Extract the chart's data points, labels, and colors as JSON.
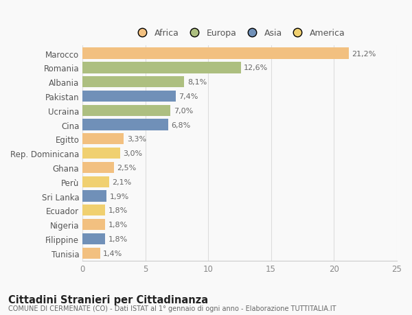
{
  "categories": [
    "Marocco",
    "Romania",
    "Albania",
    "Pakistan",
    "Ucraina",
    "Cina",
    "Egitto",
    "Rep. Dominicana",
    "Ghana",
    "Perù",
    "Sri Lanka",
    "Ecuador",
    "Nigeria",
    "Filippine",
    "Tunisia"
  ],
  "values": [
    21.2,
    12.6,
    8.1,
    7.4,
    7.0,
    6.8,
    3.3,
    3.0,
    2.5,
    2.1,
    1.9,
    1.8,
    1.8,
    1.8,
    1.4
  ],
  "labels": [
    "21,2%",
    "12,6%",
    "8,1%",
    "7,4%",
    "7,0%",
    "6,8%",
    "3,3%",
    "3,0%",
    "2,5%",
    "2,1%",
    "1,9%",
    "1,8%",
    "1,8%",
    "1,8%",
    "1,4%"
  ],
  "colors": [
    "#F2C080",
    "#ADBF80",
    "#ADBF80",
    "#7090B8",
    "#ADBF80",
    "#7090B8",
    "#F2C080",
    "#F0D070",
    "#F2C080",
    "#F0D070",
    "#7090B8",
    "#F0D070",
    "#F2C080",
    "#7090B8",
    "#F2C080"
  ],
  "legend_labels": [
    "Africa",
    "Europa",
    "Asia",
    "America"
  ],
  "legend_colors": [
    "#F2C080",
    "#ADBF80",
    "#7090B8",
    "#F0D070"
  ],
  "xlim": [
    0,
    25
  ],
  "xticks": [
    0,
    5,
    10,
    15,
    20,
    25
  ],
  "title": "Cittadini Stranieri per Cittadinanza",
  "subtitle": "COMUNE DI CERMENATE (CO) - Dati ISTAT al 1° gennaio di ogni anno - Elaborazione TUTTITALIA.IT",
  "background_color": "#f9f9f9",
  "bar_height": 0.78
}
